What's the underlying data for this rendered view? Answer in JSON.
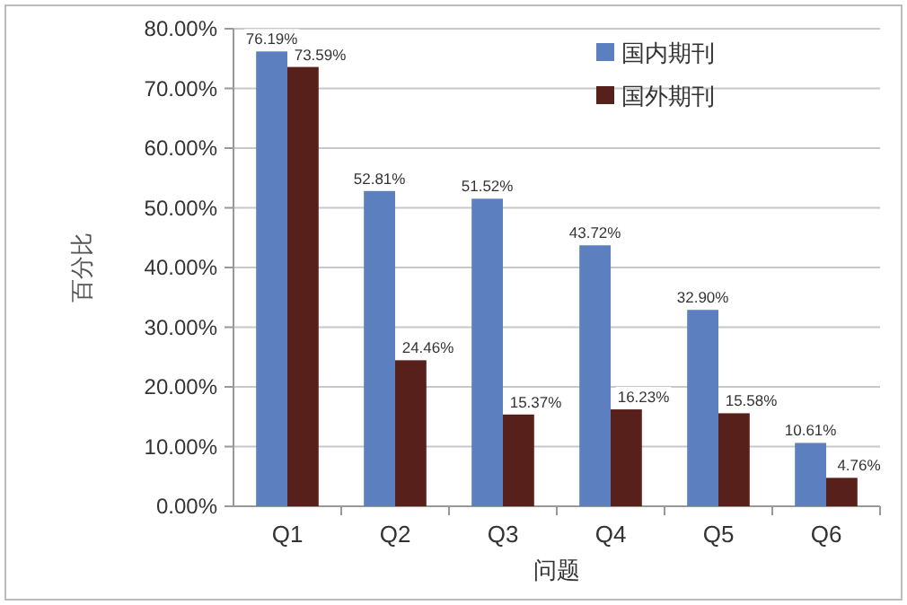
{
  "chart_data": {
    "type": "bar",
    "xlabel": "问题",
    "ylabel": "百分比",
    "categories": [
      "Q1",
      "Q2",
      "Q3",
      "Q4",
      "Q5",
      "Q6"
    ],
    "series": [
      {
        "name": "国内期刊",
        "color": "#5b7fbf",
        "values": [
          76.19,
          52.81,
          51.52,
          43.72,
          32.9,
          10.61
        ],
        "value_labels": [
          "76.19%",
          "52.81%",
          "51.52%",
          "43.72%",
          "32.90%",
          "10.61%"
        ]
      },
      {
        "name": "国外期刊",
        "color": "#58201b",
        "values": [
          73.59,
          24.46,
          15.37,
          16.23,
          15.58,
          4.76
        ],
        "value_labels": [
          "73.59%",
          "24.46%",
          "15.37%",
          "16.23%",
          "15.58%",
          "4.76%"
        ]
      }
    ],
    "ylim": [
      0,
      80
    ],
    "yticks": [
      {
        "value": 0,
        "label": "0.00%"
      },
      {
        "value": 10,
        "label": "10.00%"
      },
      {
        "value": 20,
        "label": "20.00%"
      },
      {
        "value": 30,
        "label": "30.00%"
      },
      {
        "value": 40,
        "label": "40.00%"
      },
      {
        "value": 50,
        "label": "50.00%"
      },
      {
        "value": 60,
        "label": "60.00%"
      },
      {
        "value": 70,
        "label": "70.00%"
      },
      {
        "value": 80,
        "label": "80.00%"
      }
    ],
    "grid": "y",
    "legend": "top right"
  }
}
